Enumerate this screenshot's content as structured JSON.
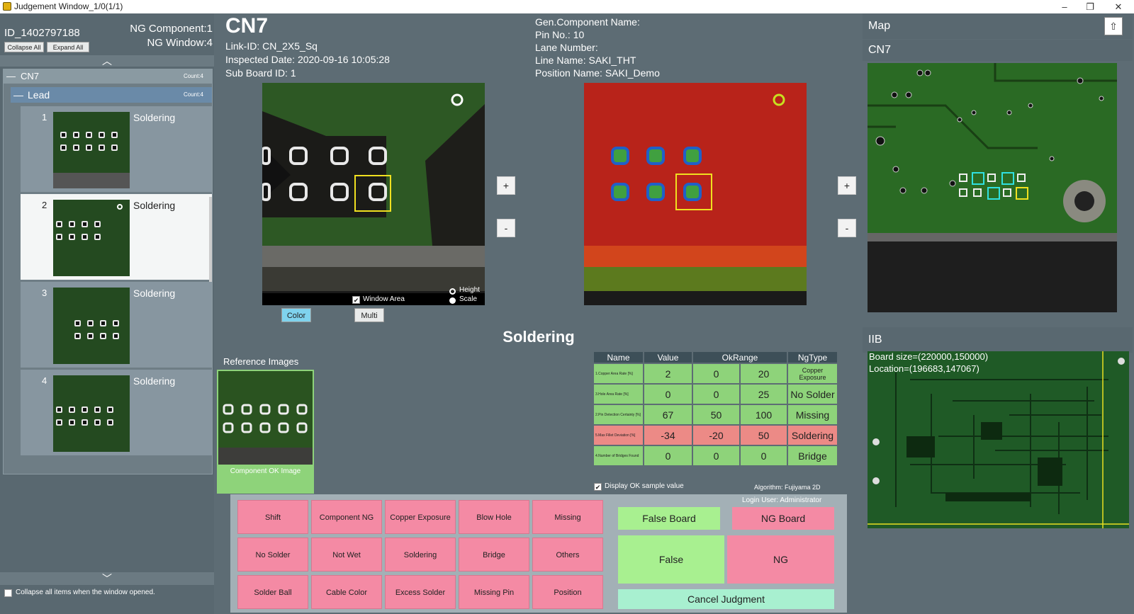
{
  "window": {
    "title": "Judgement Window_1/0(1/1)",
    "minimize": "–",
    "restore": "❐",
    "close": "✕"
  },
  "left": {
    "board_id": "ID_1402797188",
    "ng_component": "NG Component:1",
    "ng_window": "NG Window:4",
    "collapse_all": "Collapse All",
    "expand_all": "Expand All",
    "tree": {
      "component": "CN7",
      "component_count": "Count:4",
      "group": "Lead",
      "group_count": "Count:4",
      "items": [
        {
          "num": "1",
          "label": "Soldering"
        },
        {
          "num": "2",
          "label": "Soldering"
        },
        {
          "num": "3",
          "label": "Soldering"
        },
        {
          "num": "4",
          "label": "Soldering"
        }
      ]
    },
    "collapse_on_open": "Collapse all items when the window opened."
  },
  "component": {
    "name": "CN7",
    "link_id": "Link-ID: CN_2X5_Sq",
    "inspected_date": "Inspected Date: 2020-09-16 10:05:28",
    "sub_board": "Sub Board ID: 1",
    "gen_name": "Gen.Component Name:",
    "pin_no": "Pin No.: 10",
    "lane": "Lane Number:",
    "line_name": "Line Name: SAKI_THT",
    "position_name": "Position Name: SAKI_Demo"
  },
  "viewer": {
    "window_area": "Window Area",
    "height": "Height",
    "scale": "Scale",
    "color_btn": "Color",
    "multi_btn": "Multi",
    "plus": "+",
    "minus": "-",
    "defect_title": "Soldering"
  },
  "reference": {
    "title": "Reference Images",
    "caption": "Component OK Image"
  },
  "table": {
    "headers": [
      "Name",
      "Value",
      "OkRange",
      "NgType"
    ],
    "rows": [
      {
        "name": "1.Copper Area Rate [%]",
        "value": "2",
        "min": "0",
        "max": "20",
        "ngtype": "Copper Exposure",
        "status": "ok"
      },
      {
        "name": "3.Hole Area Rate [%]",
        "value": "0",
        "min": "0",
        "max": "25",
        "ngtype": "No Solder",
        "status": "ok"
      },
      {
        "name": "2.Pin Detection Certainty [%]",
        "value": "67",
        "min": "50",
        "max": "100",
        "ngtype": "Missing",
        "status": "ok"
      },
      {
        "name": "5.Max Fillet Deviation [%]",
        "value": "-34",
        "min": "-20",
        "max": "50",
        "ngtype": "Soldering",
        "status": "ng"
      },
      {
        "name": "4.Number of Bridges Found",
        "value": "0",
        "min": "0",
        "max": "0",
        "ngtype": "Bridge",
        "status": "ok"
      }
    ],
    "display_ok": "Display OK sample value",
    "algorithm": "Algorithm: Fujiyama 2D"
  },
  "judge": {
    "login_user": "Login User: Administrator",
    "ng_buttons": [
      [
        "Shift",
        "Component NG",
        "Copper Exposure",
        "Blow Hole",
        "Missing"
      ],
      [
        "No Solder",
        "Not Wet",
        "Soldering",
        "Bridge",
        "Others"
      ],
      [
        "Solder Ball",
        "Cable Color",
        "Excess Solder",
        "Missing Pin",
        "Position"
      ]
    ],
    "false_board": "False Board",
    "ng_board": "NG Board",
    "false": "False",
    "ng": "NG",
    "cancel": "Cancel Judgment"
  },
  "right": {
    "map_title": "Map",
    "map_component": "CN7",
    "iib_title": "IIB",
    "board_size": "Board size=(220000,150000)",
    "location": "Location=(196683,147067)"
  }
}
